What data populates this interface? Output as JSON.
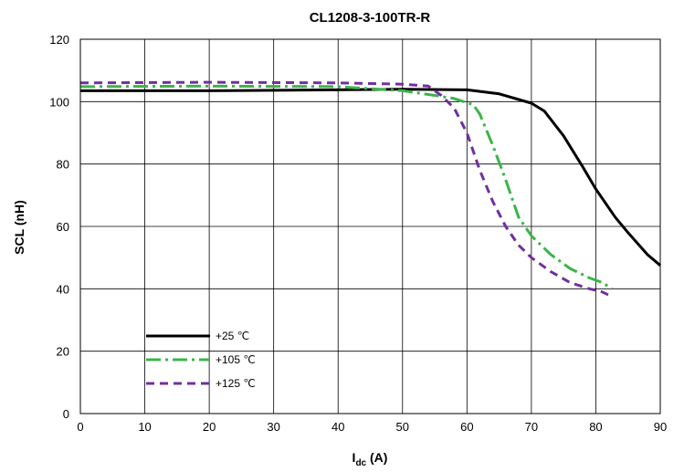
{
  "chart_data": {
    "type": "line",
    "title": "CL1208-3-100TR-R",
    "xlabel_main": "I",
    "xlabel_sub": "dc",
    "xlabel_unit": " (A)",
    "ylabel": "SCL (nH)",
    "xlim": [
      0,
      90
    ],
    "ylim": [
      0,
      120
    ],
    "x_ticks": [
      0,
      10,
      20,
      30,
      40,
      50,
      60,
      70,
      80,
      90
    ],
    "y_ticks": [
      0,
      20,
      40,
      60,
      80,
      100,
      120
    ],
    "grid": true,
    "legend_position": "bottom-left",
    "series": [
      {
        "name": "+25 ℃",
        "color": "#000000",
        "dash": "solid",
        "points": [
          [
            0,
            103.5
          ],
          [
            20,
            103.5
          ],
          [
            40,
            103.8
          ],
          [
            50,
            104
          ],
          [
            60,
            103.8
          ],
          [
            65,
            102.5
          ],
          [
            70,
            99.5
          ],
          [
            72,
            97
          ],
          [
            75,
            89
          ],
          [
            78,
            79
          ],
          [
            80,
            72
          ],
          [
            83,
            63
          ],
          [
            85,
            58
          ],
          [
            88,
            51
          ],
          [
            90,
            47.5
          ]
        ]
      },
      {
        "name": "+105 ℃",
        "color": "#3cb44b",
        "dash": "dashdot",
        "points": [
          [
            0,
            104.8
          ],
          [
            20,
            105
          ],
          [
            40,
            104.8
          ],
          [
            50,
            103.5
          ],
          [
            55,
            102
          ],
          [
            58,
            101
          ],
          [
            61,
            99
          ],
          [
            62,
            96
          ],
          [
            64,
            86
          ],
          [
            66,
            75
          ],
          [
            68,
            63
          ],
          [
            70,
            57
          ],
          [
            73,
            51
          ],
          [
            76,
            46.5
          ],
          [
            79,
            43.5
          ],
          [
            81,
            42
          ],
          [
            82.5,
            40
          ]
        ]
      },
      {
        "name": "+125 ℃",
        "color": "#7030a0",
        "dash": "dash",
        "points": [
          [
            0,
            106
          ],
          [
            20,
            106.2
          ],
          [
            40,
            106
          ],
          [
            50,
            105.6
          ],
          [
            54,
            105
          ],
          [
            56,
            102
          ],
          [
            58,
            98
          ],
          [
            60,
            90
          ],
          [
            62,
            78
          ],
          [
            64,
            68
          ],
          [
            66,
            60
          ],
          [
            68,
            54
          ],
          [
            70,
            50
          ],
          [
            73,
            45.5
          ],
          [
            76,
            42
          ],
          [
            79,
            40
          ],
          [
            81,
            39
          ],
          [
            82.5,
            37.5
          ]
        ]
      }
    ]
  }
}
